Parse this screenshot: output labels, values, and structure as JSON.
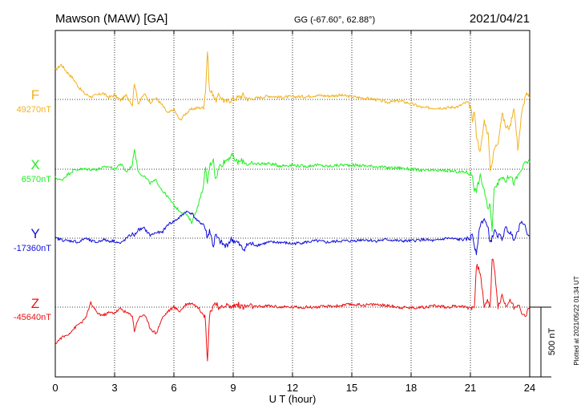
{
  "header": {
    "station": "Mawson (MAW)  [GA]",
    "coords": "GG (-67.60°,  62.88°)",
    "date": "2021/04/21"
  },
  "footer": {
    "plotted": "Plotted at 2021/05/22 01:34 UT"
  },
  "colors": {
    "F": "#f2b21c",
    "X": "#22ee22",
    "Y": "#1010dd",
    "Z": "#ee1111"
  },
  "chart_data": {
    "type": "line",
    "xlabel": "U T (hour)",
    "xlim": [
      0,
      24
    ],
    "xticks": [
      "0",
      "3",
      "6",
      "9",
      "12",
      "15",
      "18",
      "21",
      "24"
    ],
    "scale_bar": "500 nT",
    "series": [
      {
        "name": "F",
        "baseline": "49270nT",
        "x": [
          0,
          0.3,
          0.6,
          0.9,
          1.2,
          1.5,
          1.8,
          2.1,
          2.4,
          2.7,
          3.0,
          3.3,
          3.6,
          3.9,
          4.0,
          4.2,
          4.5,
          4.8,
          5.1,
          5.4,
          5.7,
          6.0,
          6.3,
          6.6,
          6.9,
          7.2,
          7.5,
          7.6,
          7.7,
          7.8,
          8.0,
          8.1,
          8.3,
          8.6,
          8.9,
          9.2,
          9.5,
          9.8,
          10.2,
          10.8,
          11.4,
          12.0,
          12.6,
          13.2,
          13.8,
          14.4,
          15.0,
          15.6,
          16.2,
          16.8,
          17.4,
          18.0,
          18.6,
          19.2,
          19.8,
          20.4,
          20.8,
          21.0,
          21.1,
          21.2,
          21.3,
          21.5,
          21.7,
          21.9,
          22.0,
          22.1,
          22.2,
          22.4,
          22.6,
          22.8,
          23.0,
          23.2,
          23.4,
          23.6,
          23.8,
          24.0
        ],
        "values": [
          210,
          250,
          195,
          150,
          85,
          40,
          20,
          30,
          45,
          15,
          30,
          -5,
          30,
          -40,
          120,
          -30,
          40,
          -20,
          10,
          -40,
          -100,
          -70,
          -150,
          -100,
          -70,
          -60,
          -60,
          70,
          350,
          60,
          40,
          -10,
          30,
          -20,
          0,
          10,
          30,
          0,
          10,
          25,
          15,
          20,
          20,
          30,
          25,
          30,
          20,
          10,
          0,
          -20,
          -10,
          -30,
          -60,
          -60,
          -60,
          -50,
          -20,
          -50,
          -150,
          -80,
          -250,
          -380,
          -150,
          -250,
          -500,
          -450,
          -360,
          -300,
          -100,
          -200,
          -200,
          -50,
          -350,
          -100,
          40,
          10
        ]
      },
      {
        "name": "X",
        "baseline": "6570nT",
        "x": [
          0,
          0.3,
          0.6,
          0.9,
          1.2,
          1.5,
          1.8,
          2.1,
          2.4,
          2.7,
          3.0,
          3.3,
          3.6,
          3.9,
          4.0,
          4.2,
          4.5,
          4.8,
          5.1,
          5.4,
          5.7,
          6.0,
          6.3,
          6.6,
          6.9,
          7.2,
          7.5,
          7.6,
          7.7,
          7.8,
          8.0,
          8.1,
          8.3,
          8.6,
          8.9,
          9.2,
          9.5,
          9.8,
          10.2,
          10.8,
          11.4,
          12.0,
          12.6,
          13.2,
          13.8,
          14.4,
          15.0,
          15.6,
          16.2,
          16.8,
          17.4,
          18.0,
          18.6,
          19.2,
          19.8,
          20.4,
          20.8,
          21.0,
          21.1,
          21.2,
          21.3,
          21.5,
          21.7,
          21.9,
          22.0,
          22.1,
          22.2,
          22.4,
          22.6,
          22.8,
          23.0,
          23.2,
          23.4,
          23.6,
          23.8,
          24.0
        ],
        "values": [
          -60,
          -80,
          -40,
          -10,
          0,
          0,
          0,
          0,
          10,
          20,
          0,
          40,
          -20,
          30,
          150,
          -20,
          -50,
          -100,
          -80,
          -150,
          -200,
          -260,
          -300,
          -320,
          -380,
          -270,
          -120,
          0,
          -100,
          20,
          80,
          -80,
          20,
          60,
          100,
          50,
          60,
          30,
          40,
          40,
          25,
          30,
          20,
          30,
          20,
          30,
          30,
          25,
          20,
          10,
          10,
          0,
          -10,
          -10,
          -10,
          -20,
          -20,
          -30,
          -40,
          -150,
          -150,
          -50,
          -150,
          -300,
          -250,
          -450,
          -120,
          -100,
          -50,
          -80,
          -40,
          -100,
          -50,
          0,
          50,
          50
        ]
      },
      {
        "name": "Y",
        "baseline": "-17360nT",
        "x": [
          0,
          0.3,
          0.6,
          0.9,
          1.2,
          1.5,
          1.8,
          2.1,
          2.4,
          2.7,
          3.0,
          3.3,
          3.6,
          3.9,
          4.0,
          4.2,
          4.5,
          4.8,
          5.1,
          5.4,
          5.7,
          6.0,
          6.3,
          6.6,
          6.9,
          7.2,
          7.5,
          7.6,
          7.7,
          7.8,
          8.0,
          8.1,
          8.3,
          8.6,
          8.9,
          9.2,
          9.5,
          9.8,
          10.2,
          10.8,
          11.4,
          12.0,
          12.6,
          13.2,
          13.8,
          14.4,
          15.0,
          15.6,
          16.2,
          16.8,
          17.4,
          18.0,
          18.6,
          19.2,
          19.8,
          20.4,
          20.8,
          21.0,
          21.1,
          21.2,
          21.3,
          21.5,
          21.7,
          21.9,
          22.0,
          22.1,
          22.2,
          22.4,
          22.6,
          22.8,
          23.0,
          23.2,
          23.4,
          23.6,
          23.8,
          24.0
        ],
        "values": [
          0,
          -10,
          -20,
          -20,
          -30,
          0,
          -20,
          -30,
          -10,
          -20,
          -20,
          -40,
          0,
          30,
          20,
          60,
          70,
          20,
          40,
          40,
          100,
          120,
          150,
          190,
          180,
          120,
          100,
          60,
          0,
          60,
          -60,
          20,
          -20,
          -60,
          -10,
          -30,
          -80,
          -40,
          -50,
          -30,
          -30,
          -40,
          -30,
          -20,
          -30,
          -20,
          -20,
          -10,
          -20,
          -10,
          -20,
          -20,
          -10,
          -20,
          0,
          -10,
          -10,
          0,
          30,
          -50,
          -100,
          100,
          140,
          60,
          -30,
          0,
          50,
          20,
          0,
          70,
          40,
          0,
          50,
          140,
          60,
          20
        ]
      },
      {
        "name": "Z",
        "baseline": "-45640nT",
        "x": [
          0,
          0.3,
          0.6,
          0.9,
          1.2,
          1.5,
          1.8,
          2.1,
          2.4,
          2.7,
          3.0,
          3.3,
          3.6,
          3.9,
          4.0,
          4.2,
          4.5,
          4.8,
          5.1,
          5.4,
          5.7,
          6.0,
          6.3,
          6.6,
          6.9,
          7.2,
          7.5,
          7.6,
          7.7,
          7.8,
          8.0,
          8.1,
          8.3,
          8.6,
          8.9,
          9.2,
          9.5,
          9.8,
          10.2,
          10.8,
          11.4,
          12.0,
          12.6,
          13.2,
          13.8,
          14.4,
          15.0,
          15.6,
          16.2,
          16.8,
          17.4,
          18.0,
          18.6,
          19.2,
          19.8,
          20.4,
          20.8,
          21.0,
          21.1,
          21.2,
          21.3,
          21.5,
          21.7,
          21.9,
          22.0,
          22.1,
          22.2,
          22.4,
          22.6,
          22.8,
          23.0,
          23.2,
          23.4,
          23.6,
          23.8,
          24.0
        ],
        "values": [
          -260,
          -220,
          -200,
          -160,
          -120,
          -90,
          30,
          -40,
          -60,
          -40,
          -40,
          -10,
          -40,
          -60,
          -170,
          -80,
          -50,
          -150,
          -190,
          -80,
          -30,
          0,
          -30,
          20,
          30,
          0,
          -50,
          -90,
          -400,
          -50,
          20,
          30,
          -20,
          20,
          0,
          20,
          0,
          10,
          0,
          10,
          0,
          0,
          0,
          0,
          5,
          10,
          20,
          15,
          20,
          10,
          0,
          -5,
          0,
          10,
          0,
          10,
          0,
          0,
          0,
          0,
          300,
          250,
          0,
          50,
          0,
          350,
          300,
          0,
          80,
          0,
          60,
          0,
          30,
          -60,
          -50,
          0
        ]
      }
    ]
  }
}
